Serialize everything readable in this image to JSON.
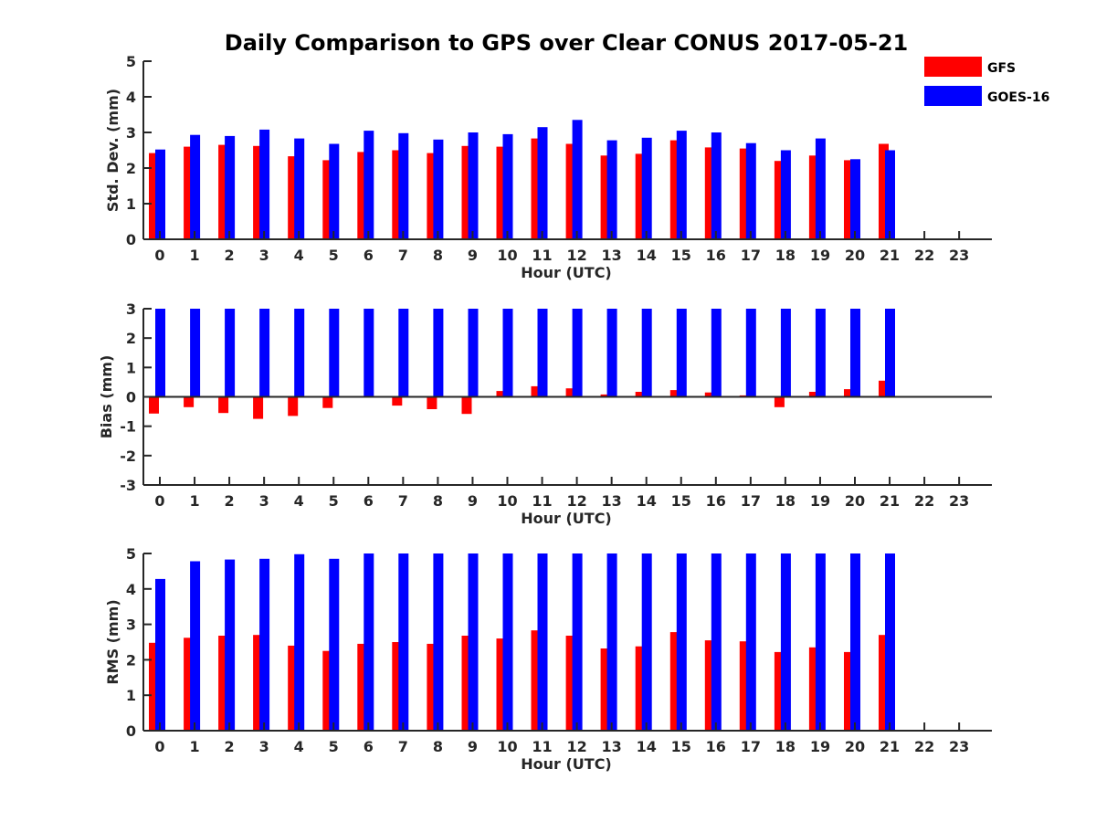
{
  "title": "Daily Comparison to GPS over Clear CONUS 2017-05-21",
  "legend": {
    "placement": "top-right, outside plot area",
    "items": [
      {
        "label": "GFS",
        "color": "#ff0000"
      },
      {
        "label": "GOES-16",
        "color": "#0000ff"
      }
    ]
  },
  "chart_data": [
    {
      "type": "bar",
      "xlabel": "Hour (UTC)",
      "ylabel": "Std. Dev. (mm)",
      "ylim": [
        0,
        5
      ],
      "yticks": [
        "0",
        "1",
        "2",
        "3",
        "4",
        "5"
      ],
      "categories": [
        "0",
        "1",
        "2",
        "3",
        "4",
        "5",
        "6",
        "7",
        "8",
        "9",
        "10",
        "11",
        "12",
        "13",
        "14",
        "15",
        "16",
        "17",
        "18",
        "19",
        "20",
        "21",
        "22",
        "23"
      ],
      "series": [
        {
          "name": "GFS",
          "color": "#ff0000",
          "values": [
            2.42,
            2.6,
            2.65,
            2.62,
            2.33,
            2.22,
            2.45,
            2.5,
            2.42,
            2.62,
            2.6,
            2.83,
            2.68,
            2.35,
            2.4,
            2.78,
            2.58,
            2.55,
            2.2,
            2.35,
            2.22,
            2.68,
            null,
            null
          ]
        },
        {
          "name": "GOES-16",
          "color": "#0000ff",
          "values": [
            2.52,
            2.93,
            2.9,
            3.08,
            2.83,
            2.68,
            3.05,
            2.98,
            2.8,
            3.0,
            2.95,
            3.15,
            3.35,
            2.78,
            2.85,
            3.05,
            3.0,
            2.7,
            2.5,
            2.83,
            2.25,
            2.5,
            null,
            null
          ]
        }
      ]
    },
    {
      "type": "bar",
      "xlabel": "Hour (UTC)",
      "ylabel": "Bias (mm)",
      "ylim": [
        -3,
        3
      ],
      "yticks": [
        "-3",
        "-2",
        "-1",
        "0",
        "1",
        "2",
        "3"
      ],
      "categories": [
        "0",
        "1",
        "2",
        "3",
        "4",
        "5",
        "6",
        "7",
        "8",
        "9",
        "10",
        "11",
        "12",
        "13",
        "14",
        "15",
        "16",
        "17",
        "18",
        "19",
        "20",
        "21",
        "22",
        "23"
      ],
      "series": [
        {
          "name": "GFS",
          "color": "#ff0000",
          "values": [
            -0.57,
            -0.35,
            -0.55,
            -0.75,
            -0.65,
            -0.38,
            -0.02,
            -0.3,
            -0.42,
            -0.58,
            0.2,
            0.36,
            0.29,
            0.08,
            0.17,
            0.23,
            0.15,
            0.05,
            -0.35,
            0.17,
            0.26,
            0.55,
            null,
            null
          ]
        },
        {
          "name": "GOES-16",
          "color": "#0000ff",
          "values": [
            3,
            3,
            3,
            3,
            3,
            3,
            3,
            3,
            3,
            3,
            3,
            3,
            3,
            3,
            3,
            3,
            3,
            3,
            3,
            3,
            3,
            3,
            null,
            null
          ]
        }
      ]
    },
    {
      "type": "bar",
      "xlabel": "Hour (UTC)",
      "ylabel": "RMS (mm)",
      "ylim": [
        0,
        5
      ],
      "yticks": [
        "0",
        "1",
        "2",
        "3",
        "4",
        "5"
      ],
      "categories": [
        "0",
        "1",
        "2",
        "3",
        "4",
        "5",
        "6",
        "7",
        "8",
        "9",
        "10",
        "11",
        "12",
        "13",
        "14",
        "15",
        "16",
        "17",
        "18",
        "19",
        "20",
        "21",
        "22",
        "23"
      ],
      "series": [
        {
          "name": "GFS",
          "color": "#ff0000",
          "values": [
            2.48,
            2.62,
            2.68,
            2.7,
            2.4,
            2.25,
            2.45,
            2.5,
            2.45,
            2.68,
            2.6,
            2.83,
            2.68,
            2.32,
            2.38,
            2.78,
            2.55,
            2.52,
            2.22,
            2.35,
            2.22,
            2.7,
            null,
            null
          ]
        },
        {
          "name": "GOES-16",
          "color": "#0000ff",
          "values": [
            4.28,
            4.78,
            4.83,
            4.85,
            4.98,
            4.85,
            5,
            5,
            5,
            5,
            5,
            5,
            5,
            5,
            5,
            5,
            5,
            5,
            5,
            5,
            5,
            5,
            null,
            null
          ]
        }
      ]
    }
  ]
}
